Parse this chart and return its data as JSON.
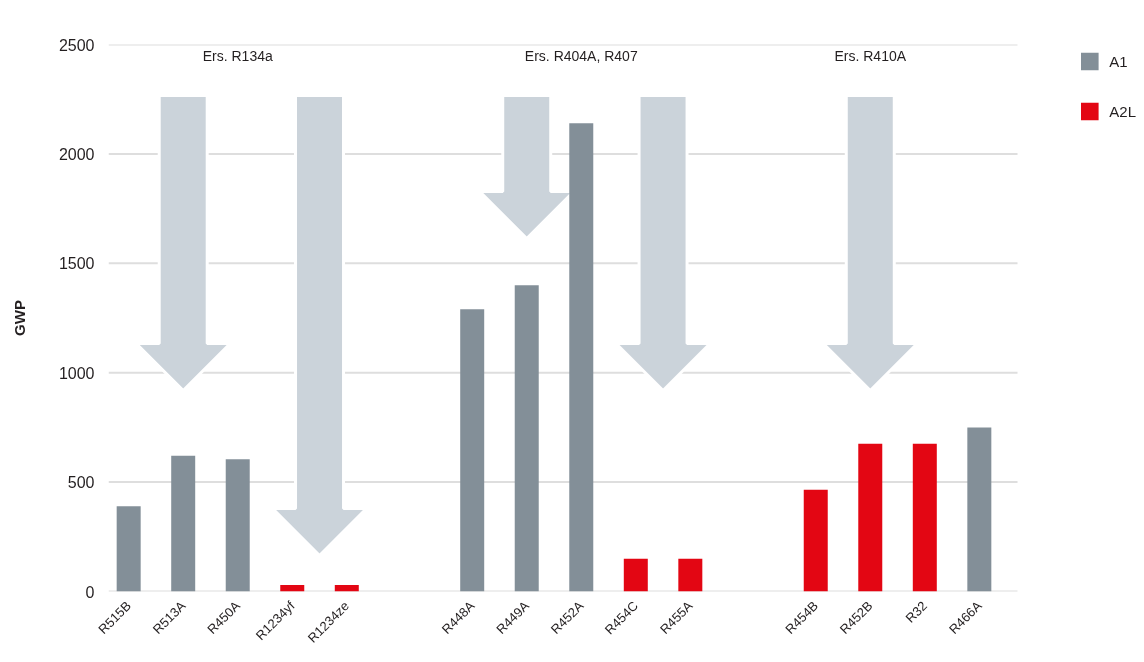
{
  "chart_data": {
    "type": "bar",
    "ylabel": "GWP",
    "categories": [
      "R515B",
      "R513A",
      "R450A",
      "R1234yf",
      "R1234ze",
      null,
      "R448A",
      "R449A",
      "R452A",
      "R454C",
      "R455A",
      null,
      "R454B",
      "R452B",
      "R32",
      "R466A"
    ],
    "series": [
      {
        "name": "A1",
        "color": "#838f98",
        "values": [
          390,
          620,
          605,
          null,
          null,
          null,
          1290,
          1400,
          2140,
          null,
          null,
          null,
          null,
          null,
          null,
          750
        ]
      },
      {
        "name": "A2L",
        "color": "#e30613",
        "values": [
          null,
          null,
          null,
          30,
          30,
          null,
          null,
          null,
          null,
          150,
          150,
          null,
          465,
          675,
          675,
          null
        ]
      }
    ],
    "stacked": true,
    "ylim": [
      0,
      2500
    ],
    "yticks": [
      0,
      500,
      1000,
      1500,
      2000,
      2500
    ],
    "grid": "y",
    "legend": "top right",
    "annotations": [
      "Ers. R134a",
      "Ers. R404A, R407",
      "Ers. R410A"
    ]
  }
}
